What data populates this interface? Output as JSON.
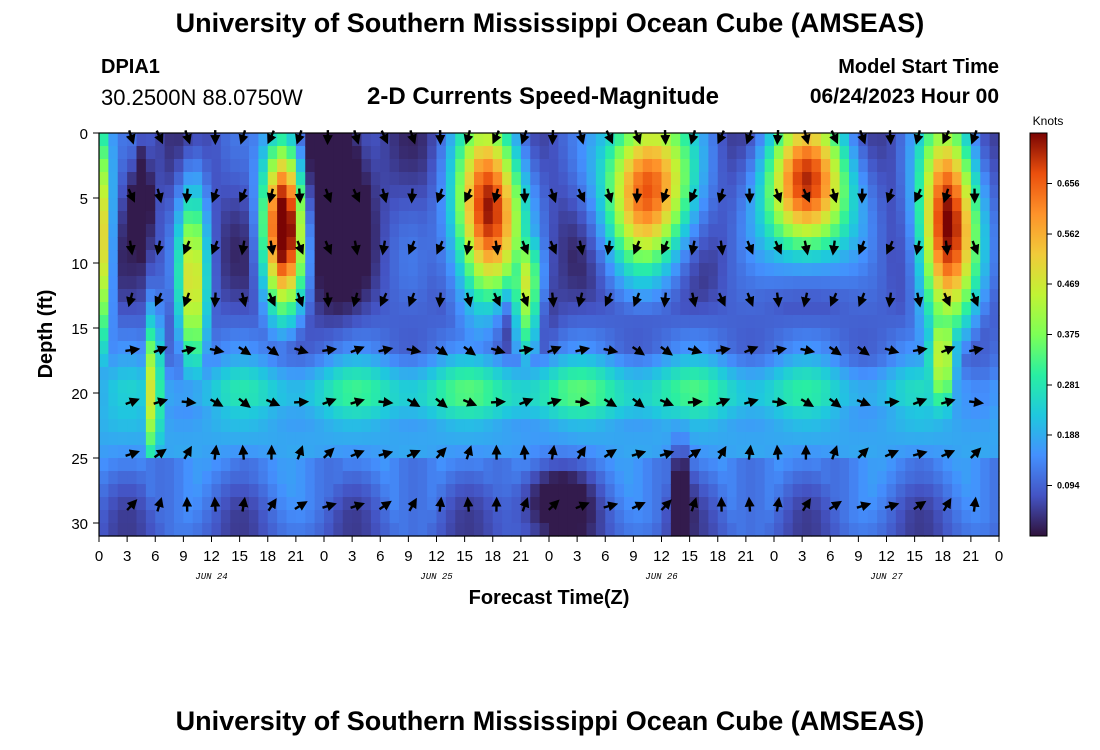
{
  "header": {
    "title": "University of Southern Mississippi Ocean Cube (AMSEAS)",
    "station_id": "DPIA1",
    "coords": "30.2500N  88.0750W",
    "subtitle": "2-D Currents Speed-Magnitude",
    "start_label": "Model Start Time",
    "start_value": "06/24/2023 Hour 00"
  },
  "footer": {
    "repeat_title": "University of Southern Mississippi Ocean Cube (AMSEAS)"
  },
  "chart_data": {
    "type": "heatmap",
    "title": "2-D Currents Speed-Magnitude",
    "xlabel": "Forecast Time(Z)",
    "ylabel": "Depth (ft)",
    "x_range_hours": [
      0,
      96
    ],
    "y_range_ft": [
      0,
      31
    ],
    "x_tick_labels": [
      "0",
      "3",
      "6",
      "9",
      "12",
      "15",
      "18",
      "21",
      "0",
      "3",
      "6",
      "9",
      "12",
      "15",
      "18",
      "21",
      "0",
      "3",
      "6",
      "9",
      "12",
      "15",
      "18",
      "21",
      "0",
      "3",
      "6",
      "9",
      "12",
      "15",
      "18",
      "21",
      "0"
    ],
    "y_ticks": [
      0,
      5,
      10,
      15,
      20,
      25,
      30
    ],
    "day_labels": [
      {
        "label": "JUN 24",
        "hour": 12
      },
      {
        "label": "JUN 25",
        "hour": 36
      },
      {
        "label": "JUN 26",
        "hour": 60
      },
      {
        "label": "JUN 27",
        "hour": 84
      }
    ],
    "colorbar": {
      "unit": "Knots",
      "min": 0,
      "max": 0.75,
      "ticks": [
        0.094,
        0.188,
        0.281,
        0.375,
        0.469,
        0.562,
        0.656
      ],
      "tick_labels": [
        "0.094",
        "0.188",
        "0.281",
        "0.375",
        "0.469",
        "0.562",
        "0.656"
      ]
    },
    "vector_depths_ft": [
      0,
      4.5,
      8.5,
      12.5,
      16.5,
      20.5,
      24.5,
      28.5
    ],
    "vector_time_step_hours": 3,
    "speed_features_knots": [
      {
        "name": "near-shore surface jet (hours 0-1)",
        "t_center": 0,
        "t_width": 1.3,
        "d_center": 8,
        "d_width": 9,
        "speed": 0.52
      },
      {
        "name": "pulse hour 4-7",
        "t_center": 5.8,
        "t_width": 0.9,
        "d_center": 20,
        "d_width": 6,
        "speed": 0.45
      },
      {
        "name": "surface pulse hour 8-11",
        "t_center": 10,
        "t_width": 1.6,
        "d_center": 12,
        "d_width": 8,
        "speed": 0.42
      },
      {
        "name": "jet hours 16-23",
        "t_center": 19.7,
        "t_width": 2.2,
        "d_center": 7,
        "d_width": 6.5,
        "speed": 0.76
      },
      {
        "name": "jet hours 35-48",
        "t_center": 41.5,
        "t_width": 3.5,
        "d_center": 6,
        "d_width": 7,
        "speed": 0.68
      },
      {
        "name": "deep tongue hours 42-47",
        "t_center": 45.5,
        "t_width": 1.6,
        "d_center": 13,
        "d_width": 5,
        "speed": 0.45
      },
      {
        "name": "jet hours 52-64",
        "t_center": 58.5,
        "t_width": 4.5,
        "d_center": 4,
        "d_width": 6,
        "speed": 0.62
      },
      {
        "name": "jet hours 69-84",
        "t_center": 75.5,
        "t_width": 4.5,
        "d_center": 4,
        "d_width": 5.5,
        "speed": 0.64
      },
      {
        "name": "jet hours 86-95",
        "t_center": 90.5,
        "t_width": 3,
        "d_center": 7,
        "d_width": 8,
        "speed": 0.7
      },
      {
        "name": "deep tongue hours 86-92",
        "t_center": 90,
        "t_width": 1.6,
        "d_center": 17,
        "d_width": 5,
        "speed": 0.4
      },
      {
        "name": "mid-depth belt",
        "t_center": 48,
        "t_width": 60,
        "d_center": 20,
        "d_width": 3,
        "speed": 0.24
      }
    ],
    "low_speed_minima_knots": [
      {
        "t_center": 4.5,
        "t_width": 0.8,
        "d_center": 5,
        "d_width": 3,
        "depth_of_drop": 0.3
      },
      {
        "t_center": 25,
        "t_width": 3,
        "d_center": 5,
        "d_width": 7,
        "depth_of_drop": 0.25
      },
      {
        "t_center": 48,
        "t_width": 4,
        "d_center": 28,
        "d_width": 3,
        "depth_of_drop": 0.15
      },
      {
        "t_center": 62,
        "t_width": 1,
        "d_center": 28,
        "d_width": 4,
        "depth_of_drop": 0.2
      },
      {
        "t_center": 45,
        "t_width": 3,
        "d_center": 14,
        "d_width": 2.5,
        "depth_of_drop": 0.12
      }
    ]
  }
}
